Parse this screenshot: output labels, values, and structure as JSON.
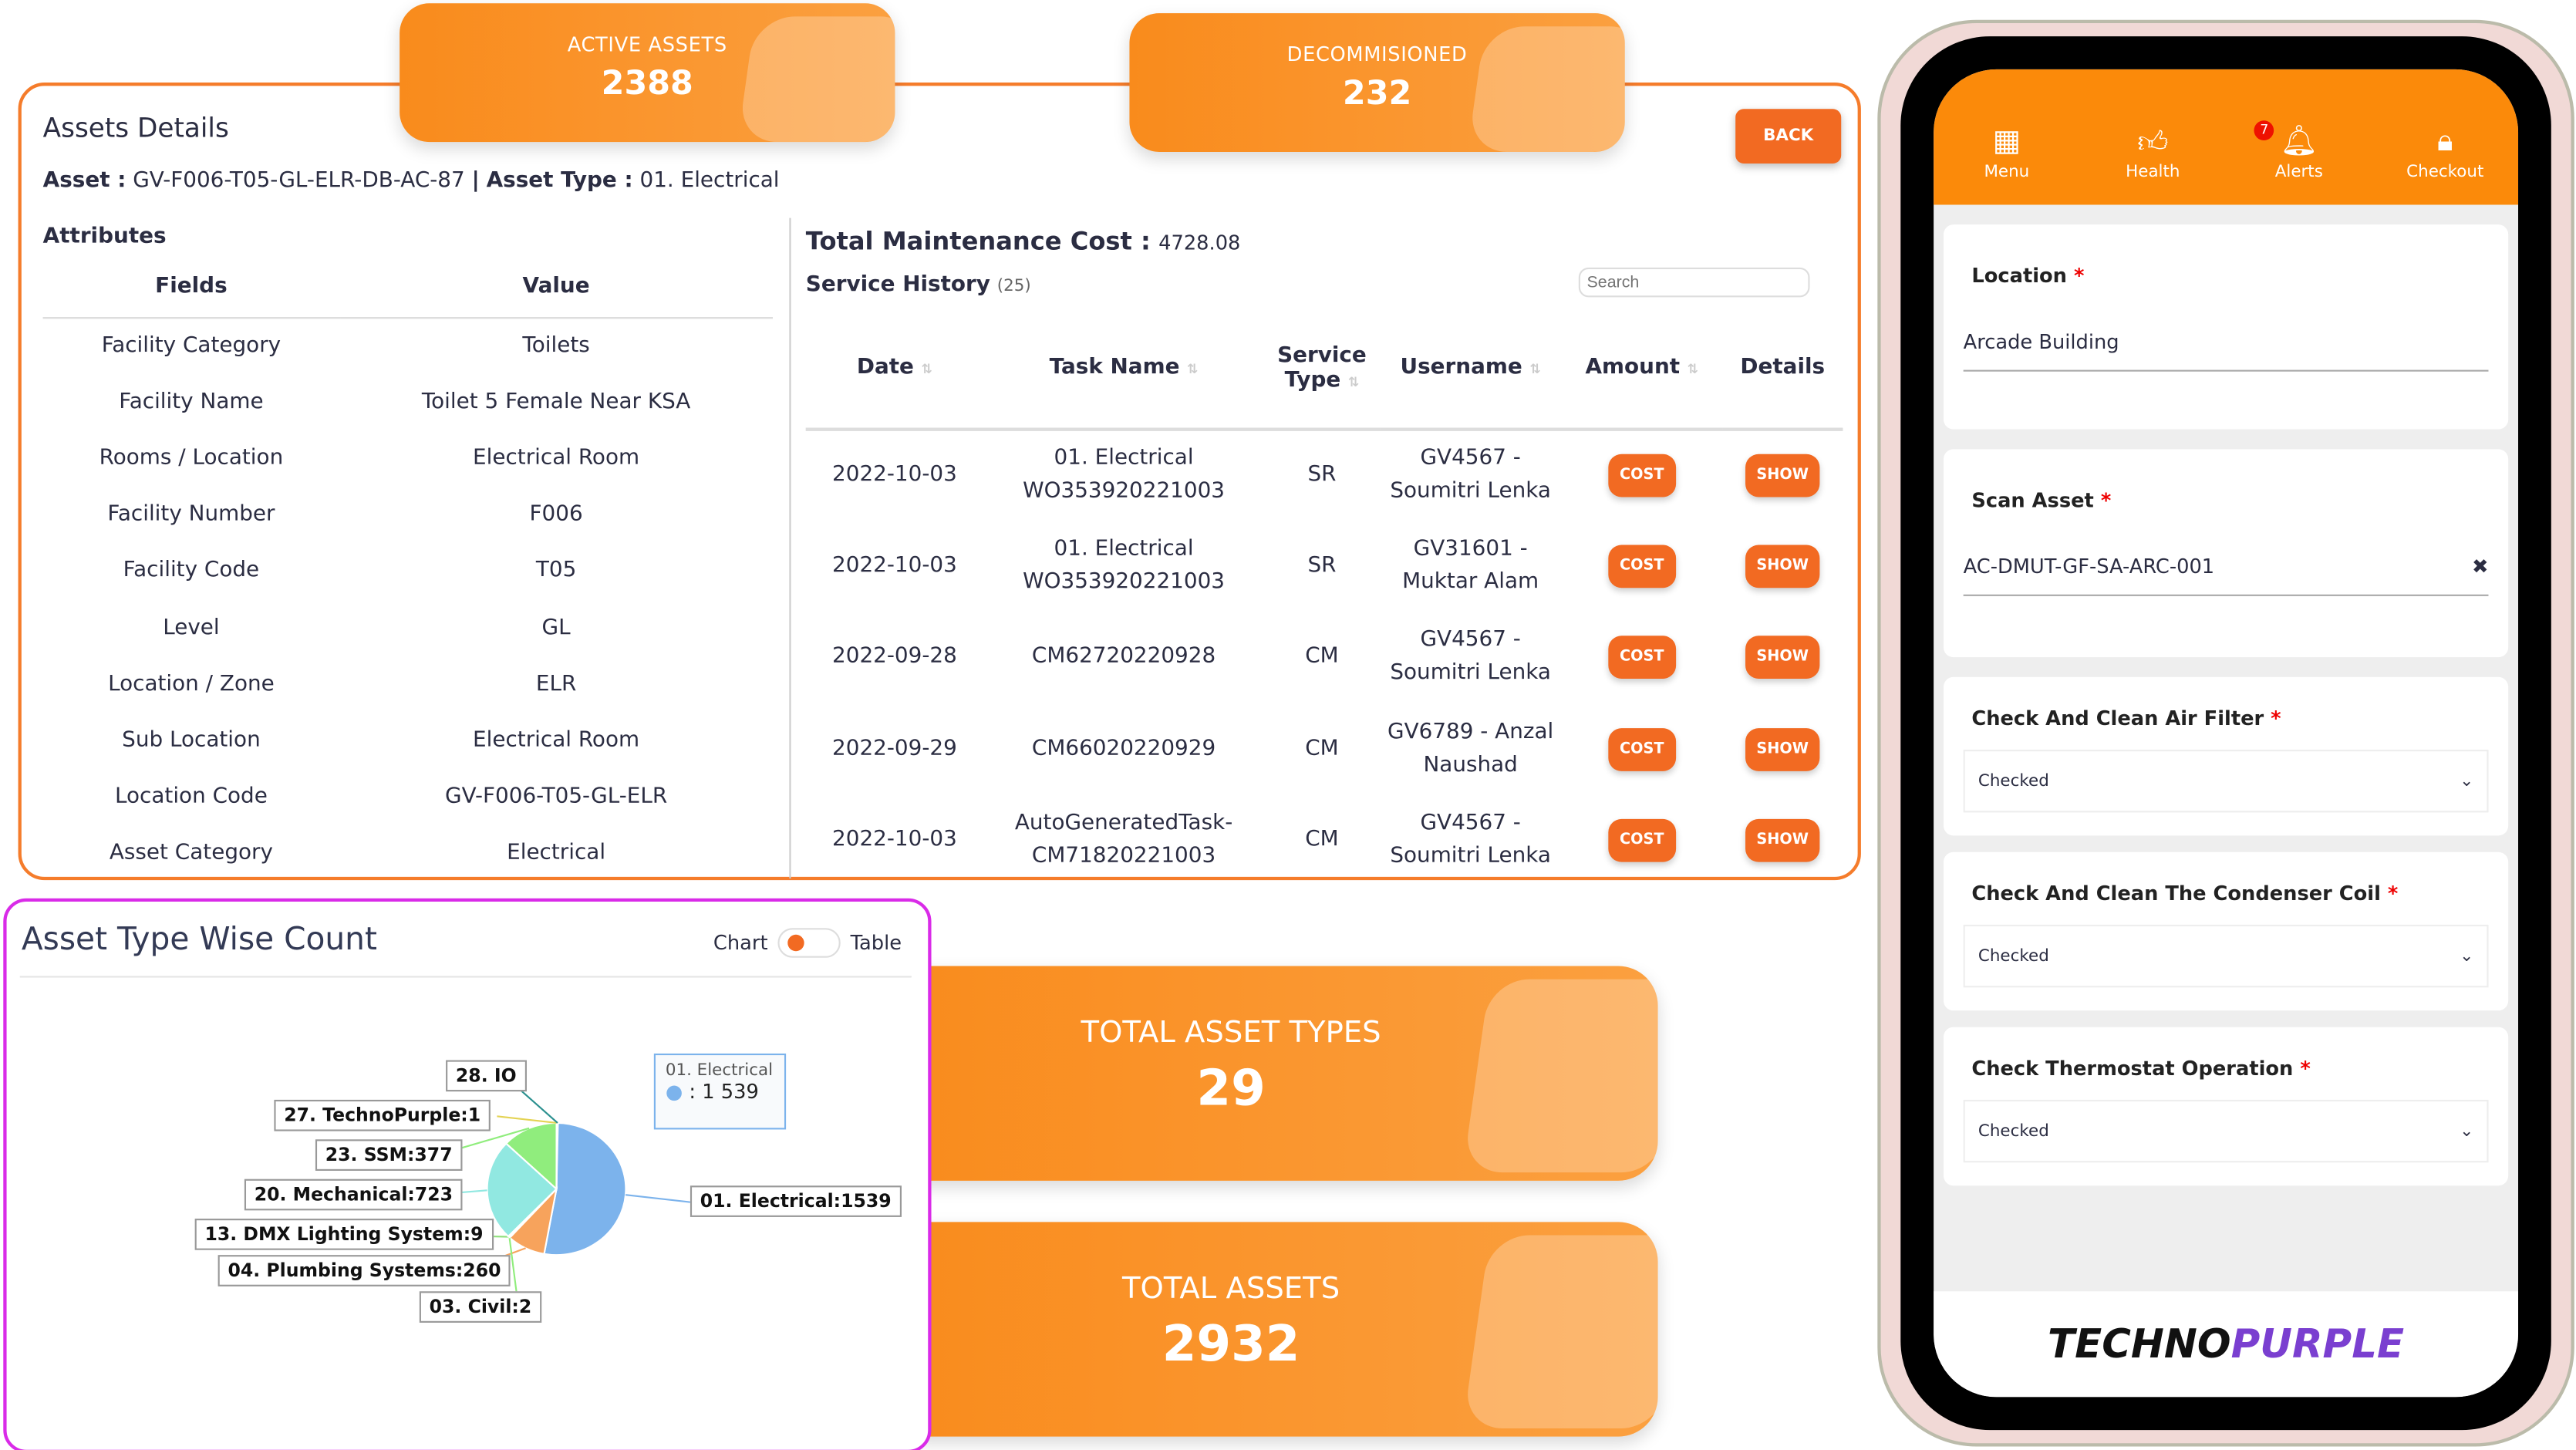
{
  "kpis": {
    "active": {
      "label": "ACTIVE ASSETS",
      "value": "2388"
    },
    "decom": {
      "label": "DECOMMISIONED",
      "value": "232"
    },
    "types": {
      "label": "TOTAL ASSET TYPES",
      "value": "29"
    },
    "total": {
      "label": "TOTAL ASSETS",
      "value": "2932"
    }
  },
  "details": {
    "title": "Assets Details",
    "asset_label": "Asset :",
    "asset": "GV-F006-T05-GL-ELR-DB-AC-87",
    "sep": "|",
    "type_label": "Asset Type :",
    "type": "01. Electrical",
    "back": "BACK",
    "attributes_title": "Attributes",
    "fields_header": "Fields",
    "value_header": "Value",
    "attributes": [
      [
        "Facility Category",
        "Toilets"
      ],
      [
        "Facility Name",
        "Toilet 5 Female Near KSA"
      ],
      [
        "Rooms / Location",
        "Electrical Room"
      ],
      [
        "Facility Number",
        "F006"
      ],
      [
        "Facility Code",
        "T05"
      ],
      [
        "Level",
        "GL"
      ],
      [
        "Location / Zone",
        "ELR"
      ],
      [
        "Sub Location",
        "Electrical Room"
      ],
      [
        "Location Code",
        "GV-F006-T05-GL-ELR"
      ],
      [
        "Asset Category",
        "Electrical"
      ]
    ],
    "cost_label": "Total Maintenance Cost :",
    "cost": "4728.08",
    "history_label": "Service History",
    "history_count": "(25)",
    "search_placeholder": "Search",
    "columns": [
      "Date",
      "Task Name",
      "Service Type",
      "Username",
      "Amount",
      "Details"
    ],
    "rows": [
      [
        "2022-10-03",
        "01. Electrical WO353920221003",
        "SR",
        "GV4567 - Soumitri Lenka"
      ],
      [
        "2022-10-03",
        "01. Electrical WO353920221003",
        "SR",
        "GV31601 - Muktar Alam"
      ],
      [
        "2022-09-28",
        "CM62720220928",
        "CM",
        "GV4567 - Soumitri Lenka"
      ],
      [
        "2022-09-29",
        "CM66020220929",
        "CM",
        "GV6789 - Anzal Naushad"
      ],
      [
        "2022-10-03",
        "AutoGeneratedTask-CM71820221003",
        "CM",
        "GV4567 - Soumitri Lenka"
      ]
    ],
    "cost_btn": "COST",
    "show_btn": "SHOW"
  },
  "chart_card": {
    "title": "Asset Type Wise Count",
    "toggle_left": "Chart",
    "toggle_right": "Table",
    "tooltip_name": "01. Electrical",
    "tooltip_value": "1 539"
  },
  "chart_data": {
    "type": "pie",
    "slices": [
      {
        "label": "01. Electrical:1539",
        "name": "01. Electrical",
        "value": 1539,
        "color": "#7cb3ec"
      },
      {
        "label": "04. Plumbing Systems:260",
        "name": "04. Plumbing Systems",
        "value": 260,
        "color": "#f7a35c"
      },
      {
        "label": "03. Civil:2",
        "name": "03. Civil",
        "value": 2,
        "color": "#90ed7d"
      },
      {
        "label": "13. DMX Lighting System:9",
        "name": "13. DMX Lighting System",
        "value": 9,
        "color": "#8ee07a"
      },
      {
        "label": "20. Mechanical:723",
        "name": "20. Mechanical",
        "value": 723,
        "color": "#91e8e1"
      },
      {
        "label": "23. SSM:377",
        "name": "23. SSM",
        "value": 377,
        "color": "#90ed7d"
      },
      {
        "label": "27. TechnoPurple:1",
        "name": "27. TechnoPurple",
        "value": 1,
        "color": "#e4d354"
      },
      {
        "label": "28. IO",
        "name": "28. IO",
        "value": 1,
        "color": "#2b908f"
      }
    ]
  },
  "phone": {
    "nav": [
      "Menu",
      "Health",
      "Alerts",
      "Checkout"
    ],
    "alert_count": "7",
    "location_label": "Location",
    "location_value": "Arcade Building",
    "scan_label": "Scan Asset",
    "scan_value": "AC-DMUT-GF-SA-ARC-001",
    "checks": [
      {
        "label": "Check And Clean Air Filter",
        "value": "Checked"
      },
      {
        "label": "Check And Clean The Condenser Coil",
        "value": "Checked"
      },
      {
        "label": "Check Thermostat Operation",
        "value": "Checked"
      }
    ],
    "logo": "TECHNOPURPLE"
  },
  "colors": {
    "accent": "#f98b1c",
    "button": "#f26a22",
    "chart_border": "#d92be8"
  }
}
